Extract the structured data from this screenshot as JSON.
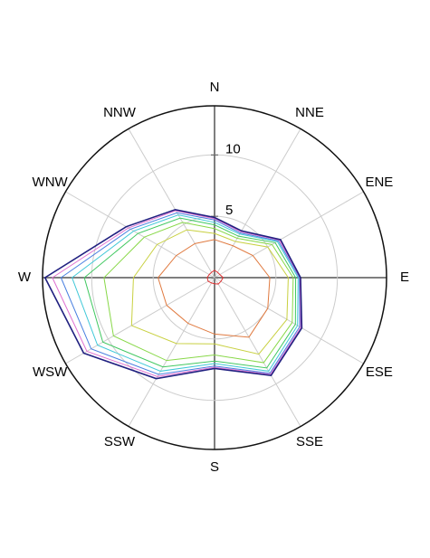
{
  "chart_data": {
    "type": "polar-line",
    "categories": [
      "N",
      "NNE",
      "ENE",
      "E",
      "ESE",
      "SSE",
      "S",
      "SSW",
      "WSW",
      "W",
      "WNW",
      "NNW"
    ],
    "rlim": [
      0,
      14
    ],
    "rticks": [
      5,
      10
    ],
    "grid": true,
    "series": [
      {
        "color": "#e03030",
        "values": [
          0.6,
          0.5,
          0.5,
          0.7,
          0.6,
          0.6,
          0.5,
          0.5,
          0.6,
          0.6,
          0.5,
          0.5
        ]
      },
      {
        "color": "#e07a40",
        "values": [
          3.1,
          3.0,
          3.6,
          4.5,
          5.0,
          5.6,
          4.6,
          4.3,
          4.5,
          4.6,
          3.6,
          3.2
        ]
      },
      {
        "color": "#c8d040",
        "values": [
          3.6,
          3.4,
          5.0,
          6.0,
          6.8,
          7.2,
          5.4,
          6.2,
          7.8,
          6.6,
          5.4,
          4.5
        ]
      },
      {
        "color": "#88d848",
        "values": [
          4.0,
          3.7,
          5.4,
          6.4,
          7.3,
          8.0,
          6.3,
          7.8,
          9.5,
          9.0,
          6.6,
          5.2
        ]
      },
      {
        "color": "#40c860",
        "values": [
          4.3,
          3.9,
          5.7,
          6.6,
          7.6,
          8.5,
          6.8,
          8.4,
          10.5,
          10.6,
          7.2,
          5.6
        ]
      },
      {
        "color": "#40c8d8",
        "values": [
          4.5,
          4.1,
          5.9,
          6.8,
          7.8,
          8.8,
          7.0,
          8.8,
          11.0,
          11.6,
          7.6,
          5.9
        ]
      },
      {
        "color": "#4a80e0",
        "values": [
          4.7,
          4.2,
          6.0,
          6.9,
          8.0,
          9.0,
          7.2,
          9.1,
          11.6,
          12.5,
          7.9,
          6.1
        ]
      },
      {
        "color": "#e070d0",
        "values": [
          4.8,
          4.3,
          6.1,
          6.95,
          8.1,
          9.1,
          7.3,
          9.3,
          12.0,
          13.2,
          8.1,
          6.3
        ]
      },
      {
        "color": "#202080",
        "values": [
          4.9,
          4.4,
          6.2,
          7.0,
          8.2,
          9.2,
          7.4,
          9.5,
          12.3,
          13.8,
          8.3,
          6.4
        ]
      }
    ]
  }
}
